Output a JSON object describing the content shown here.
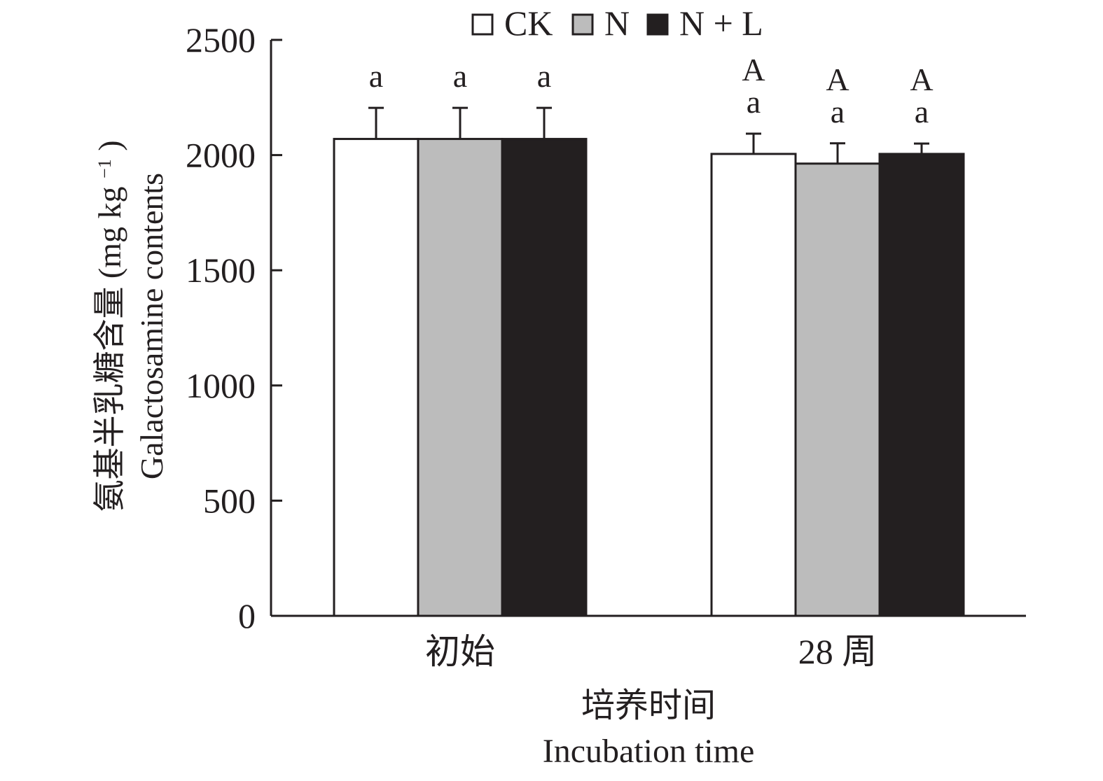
{
  "chart_data": {
    "type": "bar",
    "categories": [
      "初始",
      "28 周"
    ],
    "series": [
      {
        "name": "CK",
        "color": "#ffffff",
        "values": [
          2070,
          2005
        ],
        "errors": [
          135,
          88
        ],
        "letters": [
          [
            "a"
          ],
          [
            "A",
            "a"
          ]
        ]
      },
      {
        "name": "N",
        "color": "#bcbcbc",
        "values": [
          2070,
          1963
        ],
        "errors": [
          135,
          88
        ],
        "letters": [
          [
            "a"
          ],
          [
            "A",
            "a"
          ]
        ]
      },
      {
        "name": "N + L",
        "color": "#231f20",
        "values": [
          2070,
          2005
        ],
        "errors": [
          135,
          45
        ],
        "letters": [
          [
            "a"
          ],
          [
            "A",
            "a"
          ]
        ]
      }
    ],
    "ylim": [
      0,
      2500
    ],
    "yticks": [
      0,
      500,
      1000,
      1500,
      2000,
      2500
    ],
    "ylabel_zh": "氨基半乳糖含量",
    "ylabel_unit": "(mg kg",
    "ylabel_unit_sup": "−1",
    "ylabel_unit_close": ")",
    "ylabel_en": "Galactosamine contents",
    "xlabel_zh": "培养时间",
    "xlabel_en": "Incubation time",
    "legend_position": "top-center",
    "grid": false
  }
}
